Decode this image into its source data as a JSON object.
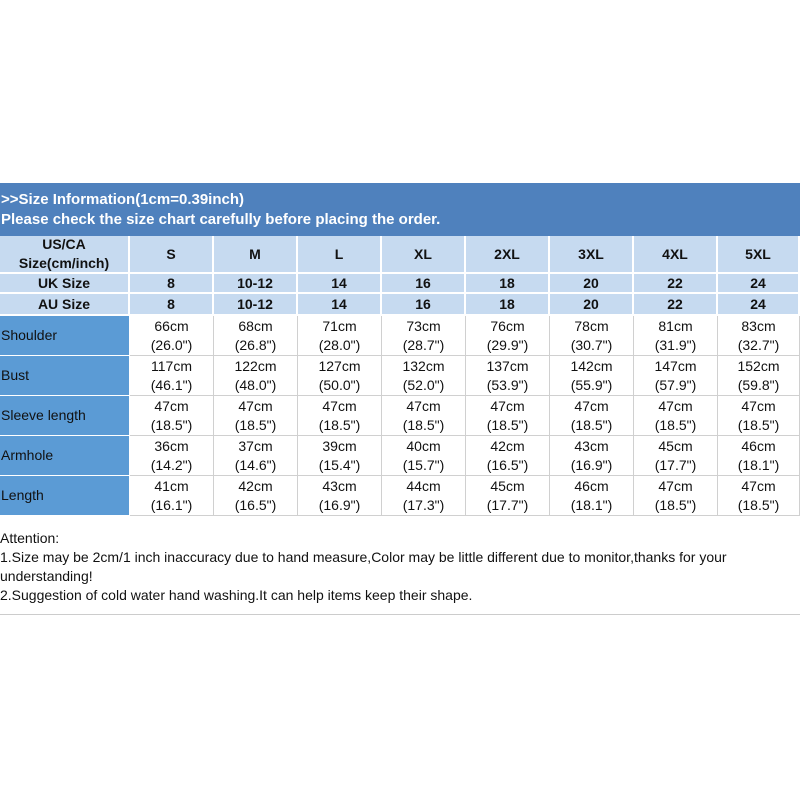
{
  "banner": {
    "line1": ">>Size Information(1cm=0.39inch)",
    "line2": "Please check the size chart carefully before placing the order."
  },
  "table": {
    "header": {
      "label": [
        "US/CA",
        "Size(cm/inch)"
      ],
      "sizes": [
        "S",
        "M",
        "L",
        "XL",
        "2XL",
        "3XL",
        "4XL",
        "5XL"
      ]
    },
    "uk": {
      "label": "UK Size",
      "values": [
        "8",
        "10-12",
        "14",
        "16",
        "18",
        "20",
        "22",
        "24"
      ]
    },
    "au": {
      "label": "AU Size",
      "values": [
        "8",
        "10-12",
        "14",
        "16",
        "18",
        "20",
        "22",
        "24"
      ]
    },
    "rows": [
      {
        "label": "Shoulder",
        "cells": [
          [
            "66cm",
            "(26.0\")"
          ],
          [
            "68cm",
            "(26.8\")"
          ],
          [
            "71cm",
            "(28.0\")"
          ],
          [
            "73cm",
            "(28.7\")"
          ],
          [
            "76cm",
            "(29.9\")"
          ],
          [
            "78cm",
            "(30.7\")"
          ],
          [
            "81cm",
            "(31.9\")"
          ],
          [
            "83cm",
            "(32.7\")"
          ]
        ]
      },
      {
        "label": "Bust",
        "cells": [
          [
            "117cm",
            "(46.1\")"
          ],
          [
            "122cm",
            "(48.0\")"
          ],
          [
            "127cm",
            "(50.0\")"
          ],
          [
            "132cm",
            "(52.0\")"
          ],
          [
            "137cm",
            "(53.9\")"
          ],
          [
            "142cm",
            "(55.9\")"
          ],
          [
            "147cm",
            "(57.9\")"
          ],
          [
            "152cm",
            "(59.8\")"
          ]
        ]
      },
      {
        "label": "Sleeve length",
        "cells": [
          [
            "47cm",
            "(18.5\")"
          ],
          [
            "47cm",
            "(18.5\")"
          ],
          [
            "47cm",
            "(18.5\")"
          ],
          [
            "47cm",
            "(18.5\")"
          ],
          [
            "47cm",
            "(18.5\")"
          ],
          [
            "47cm",
            "(18.5\")"
          ],
          [
            "47cm",
            "(18.5\")"
          ],
          [
            "47cm",
            "(18.5\")"
          ]
        ]
      },
      {
        "label": "Armhole",
        "cells": [
          [
            "36cm",
            "(14.2\")"
          ],
          [
            "37cm",
            "(14.6\")"
          ],
          [
            "39cm",
            "(15.4\")"
          ],
          [
            "40cm",
            "(15.7\")"
          ],
          [
            "42cm",
            "(16.5\")"
          ],
          [
            "43cm",
            "(16.9\")"
          ],
          [
            "45cm",
            "(17.7\")"
          ],
          [
            "46cm",
            "(18.1\")"
          ]
        ]
      },
      {
        "label": "Length",
        "cells": [
          [
            "41cm",
            "(16.1\")"
          ],
          [
            "42cm",
            "(16.5\")"
          ],
          [
            "43cm",
            "(16.9\")"
          ],
          [
            "44cm",
            "(17.3\")"
          ],
          [
            "45cm",
            "(17.7\")"
          ],
          [
            "46cm",
            "(18.1\")"
          ],
          [
            "47cm",
            "(18.5\")"
          ],
          [
            "47cm",
            "(18.5\")"
          ]
        ]
      }
    ]
  },
  "notes": {
    "title": "Attention:",
    "items": [
      "1.Size may be 2cm/1 inch inaccuracy due to hand measure,Color may be little different due to monitor,thanks for your understanding!",
      "2.Suggestion of cold water hand washing.It can help items keep their shape."
    ]
  }
}
